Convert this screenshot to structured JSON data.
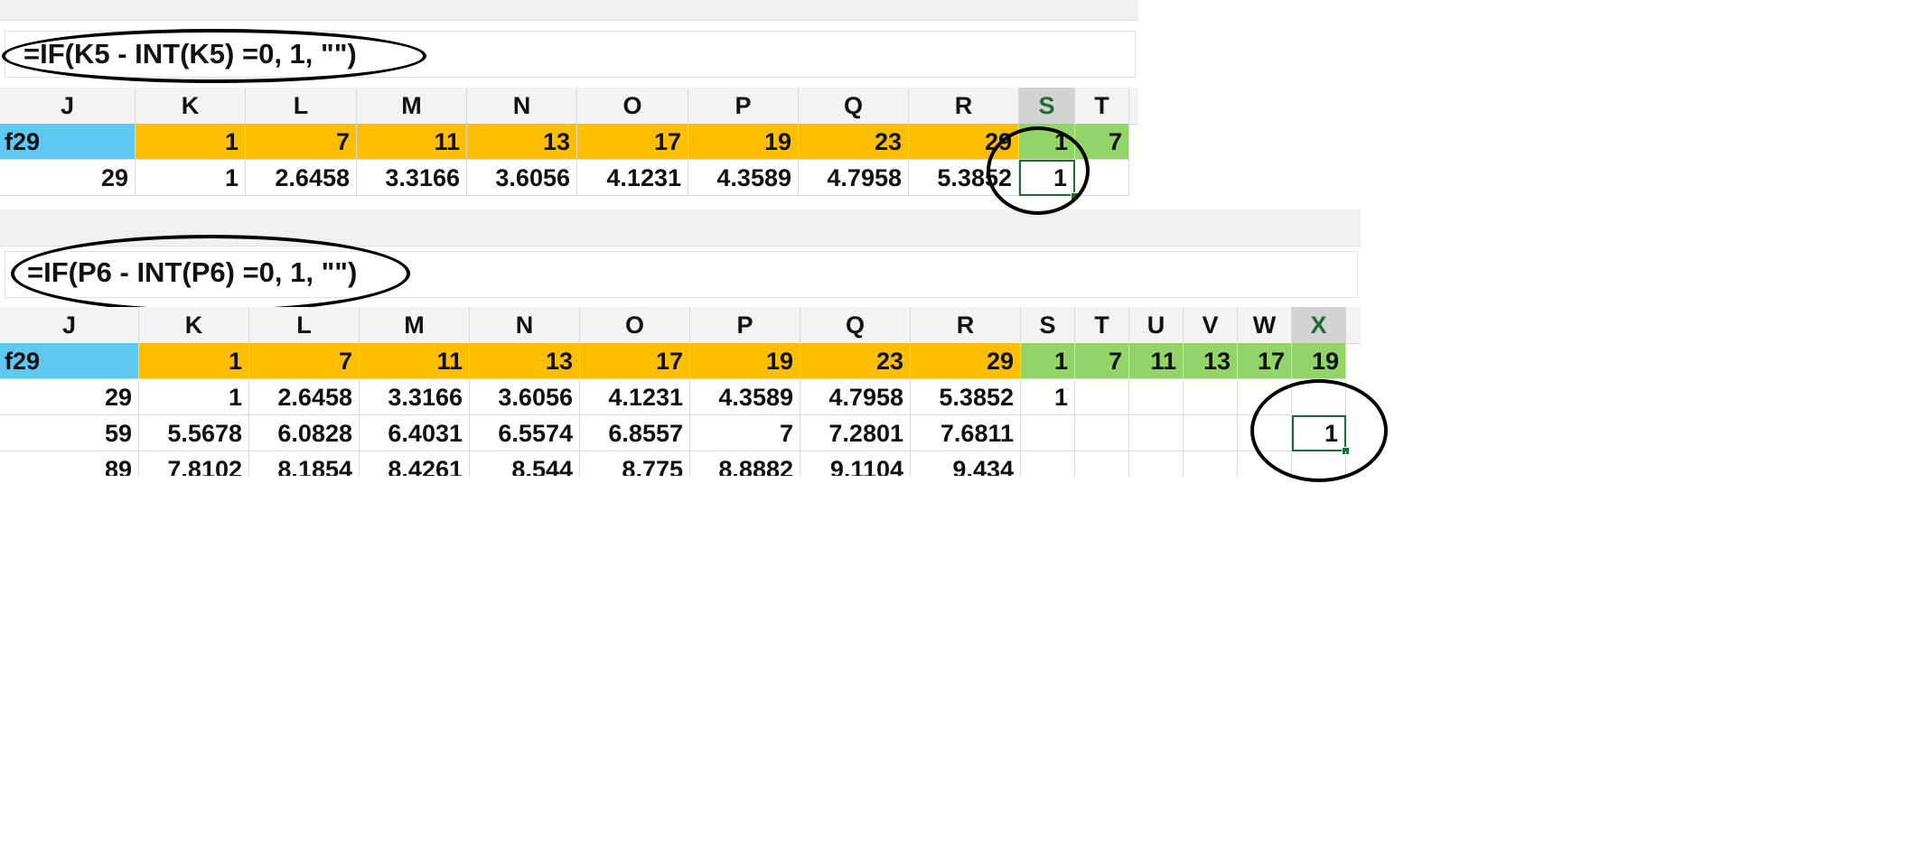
{
  "columns": [
    "J",
    "K",
    "L",
    "M",
    "N",
    "O",
    "P",
    "Q",
    "R",
    "S",
    "T",
    "U",
    "V",
    "W",
    "X"
  ],
  "screenshot1": {
    "formula": "=IF(K5 - INT(K5) =0, 1, \"\")",
    "selected_column": "S",
    "header_row": {
      "label": "f29",
      "values": [
        "1",
        "7",
        "11",
        "13",
        "17",
        "19",
        "23",
        "29"
      ],
      "green_values": [
        "1",
        "7"
      ]
    },
    "rows": [
      {
        "values": [
          "29",
          "1",
          "2.6458",
          "3.3166",
          "3.6056",
          "4.1231",
          "4.3589",
          "4.7958",
          "5.3852",
          "1",
          ""
        ]
      }
    ],
    "active_cell": {
      "ref": "S5",
      "value": "1"
    }
  },
  "screenshot2": {
    "formula": "=IF(P6 - INT(P6) =0, 1, \"\")",
    "selected_column": "X",
    "header_row": {
      "label": "f29",
      "values": [
        "1",
        "7",
        "11",
        "13",
        "17",
        "19",
        "23",
        "29"
      ],
      "green_values": [
        "1",
        "7",
        "11",
        "13",
        "17",
        "19"
      ]
    },
    "rows": [
      {
        "values": [
          "29",
          "1",
          "2.6458",
          "3.3166",
          "3.6056",
          "4.1231",
          "4.3589",
          "4.7958",
          "5.3852",
          "1",
          "",
          "",
          "",
          "",
          ""
        ]
      },
      {
        "values": [
          "59",
          "5.5678",
          "6.0828",
          "6.4031",
          "6.5574",
          "6.8557",
          "7",
          "7.2801",
          "7.6811",
          "",
          "",
          "",
          "",
          "",
          "1"
        ]
      },
      {
        "values": [
          "89",
          "7.8102",
          "8.1854",
          "8.4261",
          "8.544",
          "8.775",
          "8.8882",
          "9.1104",
          "9.434",
          "",
          "",
          "",
          "",
          "",
          ""
        ]
      }
    ],
    "active_cell": {
      "ref": "X6",
      "value": "1"
    }
  },
  "colors": {
    "label_fill": "#5ec8f2",
    "factor_fill": "#ffbf00",
    "result_fill": "#92d468",
    "selection_border": "#1e6b38",
    "annotation_oval": "#000000"
  }
}
